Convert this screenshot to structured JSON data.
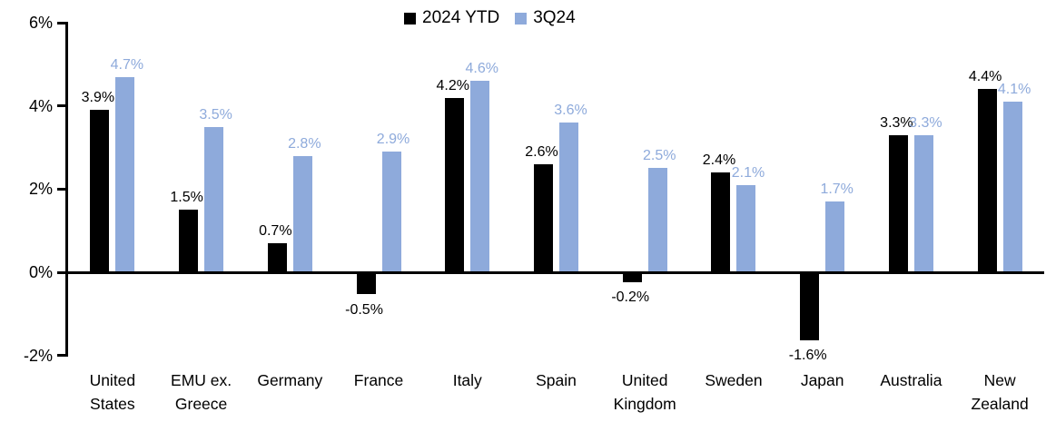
{
  "chart_data": {
    "type": "bar",
    "title": "",
    "categories": [
      "United\nStates",
      "EMU ex.\nGreece",
      "Germany",
      "France",
      "Italy",
      "Spain",
      "United\nKingdom",
      "Sweden",
      "Japan",
      "Australia",
      "New\nZealand"
    ],
    "series": [
      {
        "name": "2024 YTD",
        "color": "#000000",
        "values": [
          3.9,
          1.5,
          0.7,
          -0.5,
          4.2,
          2.6,
          -0.2,
          2.4,
          -1.6,
          3.3,
          4.4
        ]
      },
      {
        "name": "3Q24",
        "color": "#8EAADB",
        "values": [
          4.7,
          3.5,
          2.8,
          2.9,
          4.6,
          3.6,
          2.5,
          2.1,
          1.7,
          3.3,
          4.1
        ]
      }
    ],
    "data_labels": {
      "series_0": [
        "3.9%",
        "1.5%",
        "0.7%",
        "-0.5%",
        "4.2%",
        "2.6%",
        "-0.2%",
        "2.4%",
        "-1.6%",
        "3.3%",
        "4.4%"
      ],
      "series_1": [
        "4.7%",
        "3.5%",
        "2.8%",
        "2.9%",
        "4.6%",
        "3.6%",
        "2.5%",
        "2.1%",
        "1.7%",
        "3.3%",
        "4.1%"
      ]
    },
    "y_axis": {
      "ticks": [
        6,
        4,
        2,
        0,
        -2
      ],
      "tick_labels": [
        "6%",
        "4%",
        "2%",
        "0%",
        "-2%"
      ],
      "ylim": [
        -2,
        6
      ],
      "unit": "%"
    },
    "xlabel": "",
    "ylabel": "",
    "grid": false,
    "legend_position": "top-center",
    "colors": {
      "series_2024_ytd": "#000000",
      "series_3q24": "#8EAADB",
      "axis": "#000000",
      "background": "#ffffff"
    }
  }
}
